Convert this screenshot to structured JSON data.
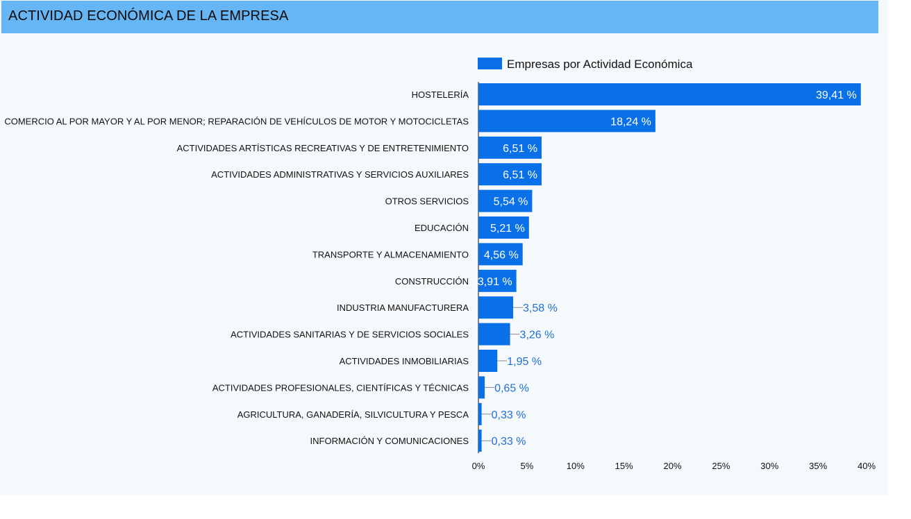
{
  "header": {
    "title": "ACTIVIDAD ECONÓMICA DE LA EMPRESA"
  },
  "chart_data": {
    "type": "bar",
    "orientation": "horizontal",
    "legend": {
      "label": "Empresas por Actividad Económica",
      "position": "top"
    },
    "bar_color": "#0a70e8",
    "inside_label_color": "#ffffff",
    "outside_label_color": "#1f6fd6",
    "categories": [
      "HOSTELERÍA",
      "COMERCIO AL POR MAYOR Y AL POR MENOR; REPARACIÓN DE VEHÍCULOS DE MOTOR Y MOTOCICLETAS",
      "ACTIVIDADES ARTÍSTICAS RECREATIVAS Y DE ENTRETENIMIENTO",
      "ACTIVIDADES ADMINISTRATIVAS Y SERVICIOS AUXILIARES",
      "OTROS SERVICIOS",
      "EDUCACIÓN",
      "TRANSPORTE Y ALMACENAMIENTO",
      "CONSTRUCCIÓN",
      "INDUSTRIA MANUFACTURERA",
      "ACTIVIDADES SANITARIAS Y DE SERVICIOS SOCIALES",
      "ACTIVIDADES INMOBILIARIAS",
      "ACTIVIDADES PROFESIONALES, CIENTÍFICAS Y TÉCNICAS",
      "AGRICULTURA, GANADERÍA, SILVICULTURA Y PESCA",
      "INFORMACIÓN Y COMUNICACIONES"
    ],
    "values": [
      39.41,
      18.24,
      6.51,
      6.51,
      5.54,
      5.21,
      4.56,
      3.91,
      3.58,
      3.26,
      1.95,
      0.65,
      0.33,
      0.33
    ],
    "value_labels": [
      "39,41 %",
      "18,24 %",
      "6,51 %",
      "6,51 %",
      "5,54 %",
      "5,21 %",
      "4,56 %",
      "3,91 %",
      "3,58 %",
      "3,26 %",
      "1,95 %",
      "0,65 %",
      "0,33 %",
      "0,33 %"
    ],
    "label_position": [
      "inside",
      "inside",
      "inside",
      "inside",
      "inside",
      "inside",
      "inside",
      "inside",
      "outside",
      "outside",
      "outside",
      "outside",
      "outside",
      "outside"
    ],
    "xlim": [
      0,
      40
    ],
    "x_ticks": [
      0,
      5,
      10,
      15,
      20,
      25,
      30,
      35,
      40
    ],
    "x_tick_labels": [
      "0%",
      "5%",
      "10%",
      "15%",
      "20%",
      "25%",
      "30%",
      "35%",
      "40%"
    ],
    "grid": false
  }
}
